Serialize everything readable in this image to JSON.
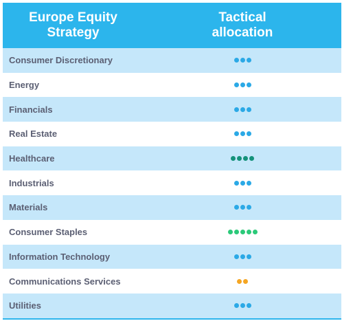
{
  "header": {
    "col1_line1": "Europe Equity",
    "col1_line2": "Strategy",
    "col2_line1": "Tactical",
    "col2_line2": "allocation"
  },
  "colors": {
    "neutral": "#2ba9e6",
    "overweight": "#14927a",
    "strong_overweight": "#2bc979",
    "underweight": "#f5a623"
  },
  "rows": [
    {
      "label": "Consumer Discretionary",
      "dots": 3,
      "color": "#2ba9e6",
      "icon": "neutral-dots-icon"
    },
    {
      "label": "Energy",
      "dots": 3,
      "color": "#2ba9e6",
      "icon": "neutral-dots-icon"
    },
    {
      "label": "Financials",
      "dots": 3,
      "color": "#2ba9e6",
      "icon": "neutral-dots-icon"
    },
    {
      "label": "Real Estate",
      "dots": 3,
      "color": "#2ba9e6",
      "icon": "neutral-dots-icon"
    },
    {
      "label": "Healthcare",
      "dots": 4,
      "color": "#14927a",
      "icon": "overweight-dots-icon"
    },
    {
      "label": "Industrials",
      "dots": 3,
      "color": "#2ba9e6",
      "icon": "neutral-dots-icon"
    },
    {
      "label": "Materials",
      "dots": 3,
      "color": "#2ba9e6",
      "icon": "neutral-dots-icon"
    },
    {
      "label": "Consumer Staples",
      "dots": 5,
      "color": "#2bc979",
      "icon": "strong-overweight-dots-icon"
    },
    {
      "label": "Information Technology",
      "dots": 3,
      "color": "#2ba9e6",
      "icon": "neutral-dots-icon"
    },
    {
      "label": "Communications Services",
      "dots": 2,
      "color": "#f5a623",
      "icon": "underweight-dots-icon"
    },
    {
      "label": "Utilities",
      "dots": 3,
      "color": "#2ba9e6",
      "icon": "neutral-dots-icon"
    }
  ]
}
